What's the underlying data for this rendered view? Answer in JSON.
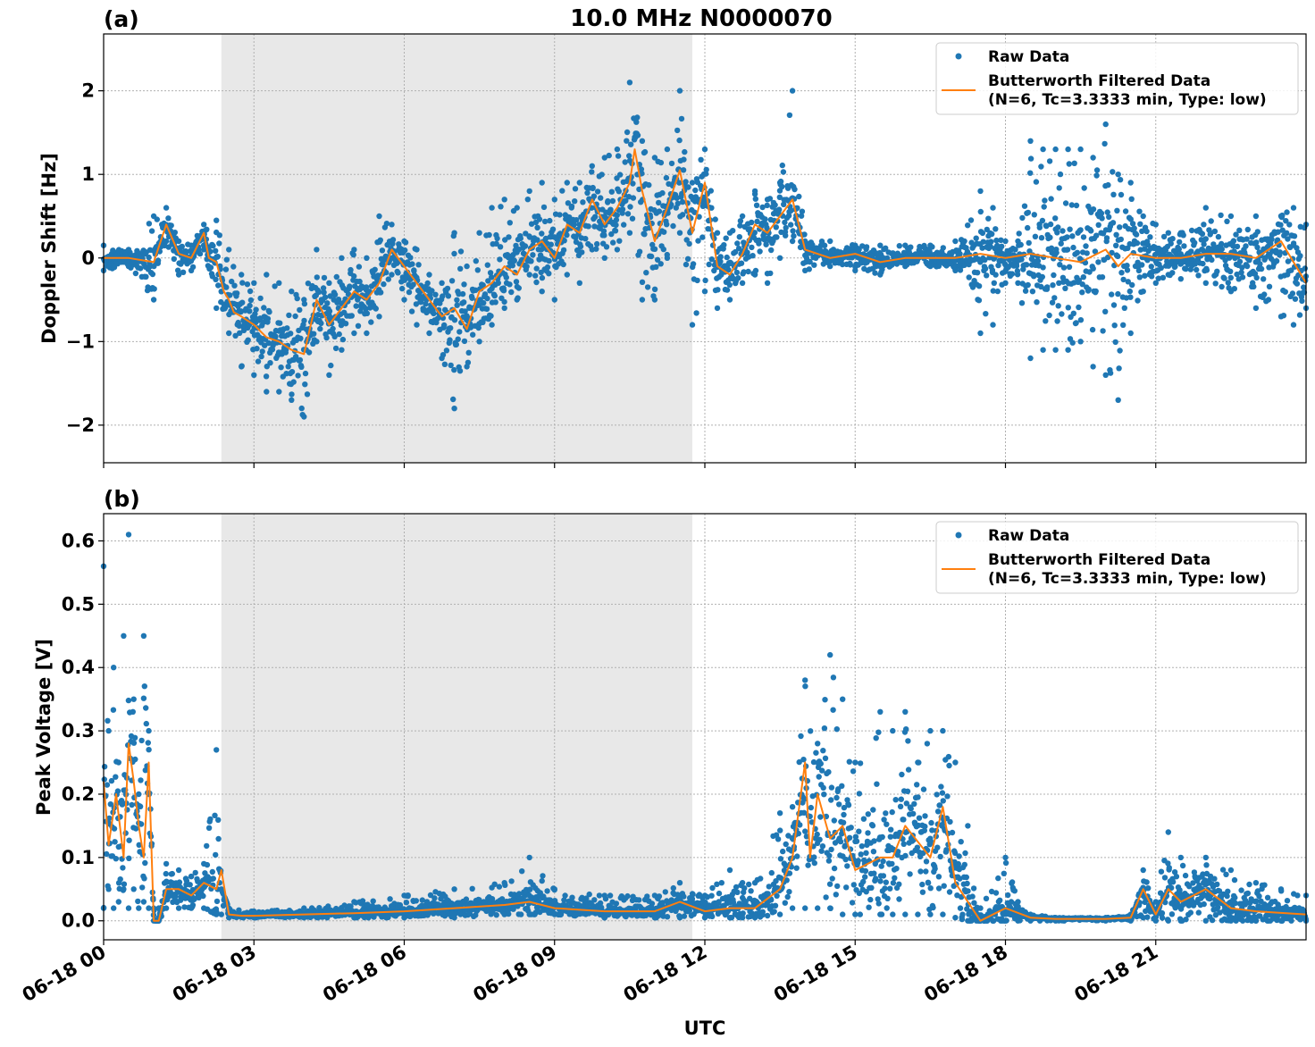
{
  "figure": {
    "title": "10.0 MHz N0000070",
    "xlabel": "UTC",
    "colors": {
      "raw": "#1f77b4",
      "filtered": "#ff7f0e",
      "shade": "#e8e8e8",
      "grid": "#b0b0b0"
    }
  },
  "chart_data": [
    {
      "type": "scatter",
      "panel_label": "(a)",
      "ylabel": "Doppler Shift [Hz]",
      "ylim": [
        -2.45,
        2.68
      ],
      "yticks": [
        -2,
        -1,
        0,
        1,
        2
      ],
      "ytick_labels": [
        "−2",
        "−1",
        "0",
        "1",
        "2"
      ],
      "x_range_hours": [
        0,
        24
      ],
      "grid": true,
      "legend_position": "top-right",
      "shaded_interval_hours": [
        2.35,
        11.75
      ],
      "legend": [
        "Raw Data",
        "Butterworth Filtered Data\n(N=6, Tc=3.3333 min, Type: low)"
      ],
      "series": [
        {
          "name": "Butterworth Filtered Data (N=6, Tc=3.3333 min, Type: low)",
          "kind": "line",
          "x": [
            0,
            0.5,
            1.0,
            1.25,
            1.5,
            1.75,
            2.0,
            2.1,
            2.25,
            2.4,
            2.5,
            2.6,
            2.75,
            3.0,
            3.25,
            3.5,
            3.75,
            4.0,
            4.25,
            4.5,
            4.75,
            5.0,
            5.25,
            5.5,
            5.75,
            6.0,
            6.25,
            6.5,
            6.75,
            7.0,
            7.25,
            7.5,
            7.75,
            8.0,
            8.25,
            8.5,
            8.75,
            9.0,
            9.25,
            9.5,
            9.75,
            10.0,
            10.25,
            10.5,
            10.6,
            10.75,
            11.0,
            11.25,
            11.5,
            11.75,
            12.0,
            12.25,
            12.5,
            12.75,
            13.0,
            13.25,
            13.5,
            13.75,
            14.0,
            14.5,
            15.0,
            15.5,
            16.0,
            16.5,
            17.0,
            17.5,
            18.0,
            18.5,
            19.0,
            19.5,
            20.0,
            20.25,
            20.5,
            21.0,
            21.5,
            22.0,
            22.5,
            23.0,
            23.5,
            24.0
          ],
          "y": [
            0.0,
            0.0,
            -0.05,
            0.4,
            0.05,
            0.0,
            0.3,
            0.0,
            -0.05,
            -0.4,
            -0.5,
            -0.65,
            -0.7,
            -0.8,
            -0.95,
            -1.0,
            -1.1,
            -1.15,
            -0.5,
            -0.8,
            -0.6,
            -0.4,
            -0.5,
            -0.3,
            0.1,
            -0.1,
            -0.3,
            -0.5,
            -0.7,
            -0.6,
            -0.85,
            -0.4,
            -0.3,
            -0.1,
            -0.2,
            0.1,
            0.2,
            0.0,
            0.4,
            0.3,
            0.7,
            0.4,
            0.6,
            0.9,
            1.3,
            0.8,
            0.2,
            0.6,
            1.05,
            0.3,
            0.9,
            -0.1,
            -0.2,
            0.05,
            0.4,
            0.3,
            0.5,
            0.7,
            0.1,
            0.0,
            0.05,
            -0.05,
            0.0,
            0.0,
            0.0,
            0.05,
            0.0,
            0.05,
            0.0,
            -0.05,
            0.1,
            -0.1,
            0.05,
            0.0,
            0.0,
            0.05,
            0.05,
            0.0,
            0.2,
            -0.3
          ]
        },
        {
          "name": "Raw Data",
          "kind": "scatter-band",
          "x": [
            0,
            0.5,
            1.0,
            1.25,
            1.5,
            1.75,
            2.0,
            2.25,
            2.5,
            2.75,
            3.0,
            3.25,
            3.5,
            3.75,
            4.0,
            4.25,
            4.5,
            4.75,
            5.0,
            5.25,
            5.5,
            5.75,
            6.0,
            6.25,
            6.5,
            6.75,
            7.0,
            7.25,
            7.5,
            7.75,
            8.0,
            8.25,
            8.5,
            8.75,
            9.0,
            9.25,
            9.5,
            9.75,
            10.0,
            10.25,
            10.5,
            10.75,
            11.0,
            11.25,
            11.5,
            11.75,
            12.0,
            12.25,
            12.5,
            12.75,
            13.0,
            13.25,
            13.5,
            13.75,
            14.0,
            14.5,
            15.0,
            15.5,
            16.0,
            16.5,
            17.0,
            17.5,
            17.75,
            18.0,
            18.25,
            18.5,
            18.75,
            19.0,
            19.25,
            19.5,
            19.75,
            20.0,
            20.25,
            20.5,
            20.75,
            21.0,
            21.25,
            21.5,
            22.0,
            22.5,
            23.0,
            23.25,
            23.5,
            23.75,
            24.0
          ],
          "low": [
            -0.15,
            -0.1,
            -0.5,
            0.2,
            -0.2,
            -0.15,
            0.1,
            -0.6,
            -0.9,
            -1.3,
            -1.4,
            -1.6,
            -1.6,
            -1.7,
            -1.9,
            -1.0,
            -1.4,
            -1.1,
            -0.9,
            -0.9,
            -0.7,
            -0.2,
            -0.5,
            -0.8,
            -0.9,
            -1.2,
            -1.8,
            -1.3,
            -1.0,
            -0.8,
            -0.6,
            -0.5,
            -0.2,
            -0.4,
            -0.5,
            -0.2,
            -0.3,
            0.1,
            0.0,
            0.1,
            0.3,
            -0.5,
            -0.5,
            0.0,
            0.3,
            -0.8,
            -0.4,
            -0.6,
            -0.5,
            -0.3,
            -0.2,
            -0.3,
            0.0,
            0.2,
            -0.15,
            -0.1,
            -0.15,
            -0.2,
            -0.1,
            -0.1,
            -0.15,
            -0.9,
            -0.8,
            -0.3,
            -0.3,
            -1.2,
            -1.1,
            -1.1,
            -1.1,
            -1.0,
            -1.3,
            -1.4,
            -1.7,
            -0.9,
            -0.4,
            -0.3,
            -0.2,
            -0.25,
            -0.3,
            -0.4,
            -0.6,
            -0.5,
            -0.7,
            -0.8,
            -0.6
          ],
          "high": [
            0.15,
            0.1,
            0.5,
            0.6,
            0.2,
            0.15,
            0.4,
            0.45,
            0.1,
            -0.2,
            -0.3,
            -0.2,
            -0.3,
            -0.4,
            -0.5,
            0.1,
            -0.3,
            0.0,
            0.1,
            0.0,
            0.5,
            0.4,
            0.2,
            0.1,
            -0.2,
            -0.3,
            0.3,
            -0.1,
            0.3,
            0.6,
            0.7,
            0.6,
            0.8,
            0.9,
            0.7,
            0.9,
            0.9,
            1.1,
            1.2,
            1.3,
            2.1,
            1.4,
            1.2,
            1.3,
            2.0,
            0.9,
            1.3,
            0.3,
            0.3,
            0.5,
            0.8,
            0.7,
            0.9,
            2.0,
            0.2,
            0.2,
            0.15,
            0.15,
            0.15,
            0.15,
            0.2,
            0.8,
            0.6,
            0.2,
            0.2,
            1.4,
            1.3,
            1.3,
            1.3,
            1.3,
            1.2,
            1.6,
            1.0,
            0.9,
            0.5,
            0.4,
            0.3,
            0.3,
            0.6,
            0.5,
            0.5,
            0.2,
            0.5,
            0.6,
            0.4
          ]
        }
      ]
    },
    {
      "type": "scatter",
      "panel_label": "(b)",
      "ylabel": "Peak Voltage [V]",
      "ylim": [
        -0.03,
        0.643
      ],
      "yticks": [
        0.0,
        0.1,
        0.2,
        0.3,
        0.4,
        0.5,
        0.6
      ],
      "ytick_labels": [
        "0.0",
        "0.1",
        "0.2",
        "0.3",
        "0.4",
        "0.5",
        "0.6"
      ],
      "x_range_hours": [
        0,
        24
      ],
      "xticks_hours": [
        0,
        3,
        6,
        9,
        12,
        15,
        18,
        21
      ],
      "xtick_labels": [
        "06-18 00",
        "06-18 03",
        "06-18 06",
        "06-18 09",
        "06-18 12",
        "06-18 15",
        "06-18 18",
        "06-18 21"
      ],
      "grid": true,
      "legend_position": "top-right",
      "shaded_interval_hours": [
        2.35,
        11.75
      ],
      "legend": [
        "Raw Data",
        "Butterworth Filtered Data\n(N=6, Tc=3.3333 min, Type: low)"
      ],
      "series": [
        {
          "name": "Butterworth Filtered Data (N=6, Tc=3.3333 min, Type: low)",
          "kind": "line",
          "x": [
            0,
            0.1,
            0.25,
            0.4,
            0.5,
            0.6,
            0.7,
            0.8,
            0.9,
            1.0,
            1.1,
            1.25,
            1.5,
            1.75,
            2.0,
            2.25,
            2.35,
            2.5,
            2.75,
            3.0,
            4.0,
            5.0,
            6.0,
            7.0,
            8.0,
            8.5,
            9.0,
            10.0,
            11.0,
            11.5,
            12.0,
            12.5,
            13.0,
            13.5,
            13.75,
            14.0,
            14.1,
            14.25,
            14.5,
            14.75,
            15.0,
            15.5,
            15.75,
            16.0,
            16.5,
            16.75,
            17.0,
            17.25,
            17.5,
            18.0,
            18.5,
            19.0,
            20.0,
            20.5,
            20.75,
            21.0,
            21.25,
            21.5,
            22.0,
            22.5,
            23.0,
            24.0
          ],
          "y": [
            0.22,
            0.12,
            0.2,
            0.1,
            0.28,
            0.22,
            0.15,
            0.1,
            0.25,
            0.0,
            0.0,
            0.05,
            0.05,
            0.04,
            0.06,
            0.05,
            0.08,
            0.01,
            0.008,
            0.008,
            0.01,
            0.012,
            0.015,
            0.02,
            0.025,
            0.03,
            0.02,
            0.015,
            0.015,
            0.03,
            0.015,
            0.02,
            0.02,
            0.05,
            0.1,
            0.25,
            0.1,
            0.2,
            0.13,
            0.15,
            0.08,
            0.1,
            0.1,
            0.15,
            0.1,
            0.18,
            0.06,
            0.03,
            0.0,
            0.02,
            0.005,
            0.003,
            0.003,
            0.005,
            0.05,
            0.01,
            0.05,
            0.03,
            0.05,
            0.02,
            0.015,
            0.01
          ]
        },
        {
          "name": "Raw Data",
          "kind": "scatter-band",
          "x": [
            0,
            0.1,
            0.2,
            0.3,
            0.4,
            0.5,
            0.6,
            0.7,
            0.8,
            0.9,
            1.0,
            1.1,
            1.25,
            1.5,
            1.75,
            2.0,
            2.25,
            2.35,
            2.5,
            3.0,
            4.0,
            5.0,
            6.0,
            7.0,
            8.0,
            8.5,
            9.0,
            10.0,
            11.0,
            11.5,
            12.0,
            12.5,
            12.75,
            13.0,
            13.5,
            13.75,
            14.0,
            14.25,
            14.5,
            14.75,
            15.0,
            15.5,
            15.75,
            16.0,
            16.25,
            16.5,
            16.75,
            17.0,
            17.25,
            17.5,
            18.0,
            18.25,
            18.5,
            19.0,
            20.0,
            20.5,
            20.75,
            21.0,
            21.25,
            21.5,
            22.0,
            22.5,
            23.0,
            23.5,
            24.0
          ],
          "low": [
            0.02,
            0.05,
            0.02,
            0.03,
            0.05,
            0.02,
            0.05,
            0.02,
            0.03,
            0.02,
            0.0,
            0.0,
            0.02,
            0.02,
            0.02,
            0.02,
            0.01,
            0.01,
            0.005,
            0.005,
            0.005,
            0.005,
            0.005,
            0.005,
            0.01,
            0.01,
            0.01,
            0.005,
            0.005,
            0.005,
            0.005,
            0.005,
            0.005,
            0.005,
            0.01,
            0.02,
            0.02,
            0.02,
            0.02,
            0.01,
            0.01,
            0.01,
            0.01,
            0.01,
            0.01,
            0.01,
            0.01,
            0.005,
            0.0,
            0.0,
            0.0,
            0.0,
            0.0,
            0.0,
            0.0,
            0.0,
            0.005,
            0.0,
            0.0,
            0.0,
            0.0,
            0.0,
            0.0,
            0.0,
            0.0
          ],
          "high": [
            0.56,
            0.3,
            0.4,
            0.25,
            0.45,
            0.61,
            0.35,
            0.2,
            0.45,
            0.3,
            0.02,
            0.02,
            0.09,
            0.08,
            0.07,
            0.09,
            0.27,
            0.05,
            0.02,
            0.015,
            0.02,
            0.03,
            0.04,
            0.05,
            0.06,
            0.1,
            0.05,
            0.04,
            0.04,
            0.06,
            0.04,
            0.08,
            0.06,
            0.06,
            0.17,
            0.18,
            0.38,
            0.28,
            0.42,
            0.35,
            0.25,
            0.33,
            0.3,
            0.33,
            0.25,
            0.3,
            0.3,
            0.25,
            0.15,
            0.02,
            0.1,
            0.03,
            0.01,
            0.005,
            0.005,
            0.01,
            0.08,
            0.03,
            0.14,
            0.1,
            0.1,
            0.08,
            0.06,
            0.05,
            0.04
          ]
        }
      ]
    }
  ]
}
